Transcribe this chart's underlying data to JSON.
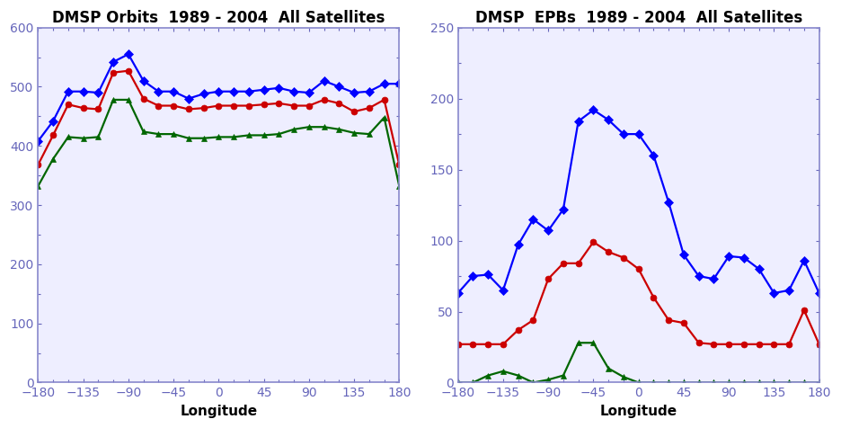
{
  "longitudes": [
    -180,
    -165,
    -150,
    -135,
    -120,
    -105,
    -90,
    -75,
    -60,
    -45,
    -30,
    -15,
    0,
    15,
    30,
    45,
    60,
    75,
    90,
    105,
    120,
    135,
    150,
    165,
    180
  ],
  "orbits_max": [
    408,
    442,
    492,
    492,
    490,
    542,
    555,
    510,
    492,
    492,
    480,
    488,
    492,
    492,
    492,
    495,
    498,
    492,
    490,
    510,
    500,
    490,
    492,
    505,
    505
  ],
  "orbits_med": [
    368,
    418,
    470,
    464,
    462,
    524,
    527,
    480,
    468,
    468,
    462,
    464,
    468,
    468,
    468,
    470,
    472,
    468,
    468,
    478,
    472,
    458,
    464,
    478,
    368
  ],
  "orbits_min": [
    332,
    378,
    415,
    413,
    415,
    478,
    478,
    424,
    420,
    420,
    413,
    413,
    415,
    415,
    418,
    418,
    420,
    428,
    432,
    432,
    428,
    422,
    420,
    448,
    332
  ],
  "epbs_max": [
    63,
    75,
    76,
    65,
    97,
    115,
    107,
    122,
    184,
    192,
    185,
    175,
    175,
    160,
    127,
    90,
    75,
    73,
    89,
    88,
    80,
    63,
    65,
    86,
    63
  ],
  "epbs_med": [
    27,
    27,
    27,
    27,
    37,
    44,
    73,
    84,
    84,
    99,
    92,
    88,
    80,
    60,
    44,
    42,
    28,
    27,
    27,
    27,
    27,
    27,
    27,
    51,
    27
  ],
  "epbs_min": [
    0,
    0,
    5,
    8,
    5,
    0,
    2,
    5,
    28,
    28,
    10,
    4,
    0,
    0,
    0,
    0,
    0,
    0,
    0,
    0,
    0,
    0,
    0,
    0,
    0
  ],
  "title_orbits": "DMSP Orbits  1989 - 2004  All Satellites",
  "title_epbs": "DMSP  EPBs  1989 - 2004  All Satellites",
  "xlabel": "Longitude",
  "color_max": "#0000ff",
  "color_med": "#cc0000",
  "color_min": "#006600",
  "marker_max": "D",
  "marker_med": "o",
  "marker_min": "^",
  "orbits_ylim": [
    0,
    600
  ],
  "epbs_ylim": [
    0,
    250
  ],
  "orbits_yticks": [
    0,
    100,
    200,
    300,
    400,
    500,
    600
  ],
  "epbs_yticks": [
    0,
    50,
    100,
    150,
    200,
    250
  ],
  "xticks": [
    -180,
    -135,
    -90,
    -45,
    0,
    45,
    90,
    135,
    180
  ],
  "spine_color": "#8888cc",
  "tick_color": "#6666bb",
  "bg_color": "#ffffff",
  "plot_bg_color": "#eeeeff",
  "title_fontsize": 12,
  "label_fontsize": 11,
  "tick_fontsize": 10,
  "linewidth": 1.6,
  "markersize": 5
}
